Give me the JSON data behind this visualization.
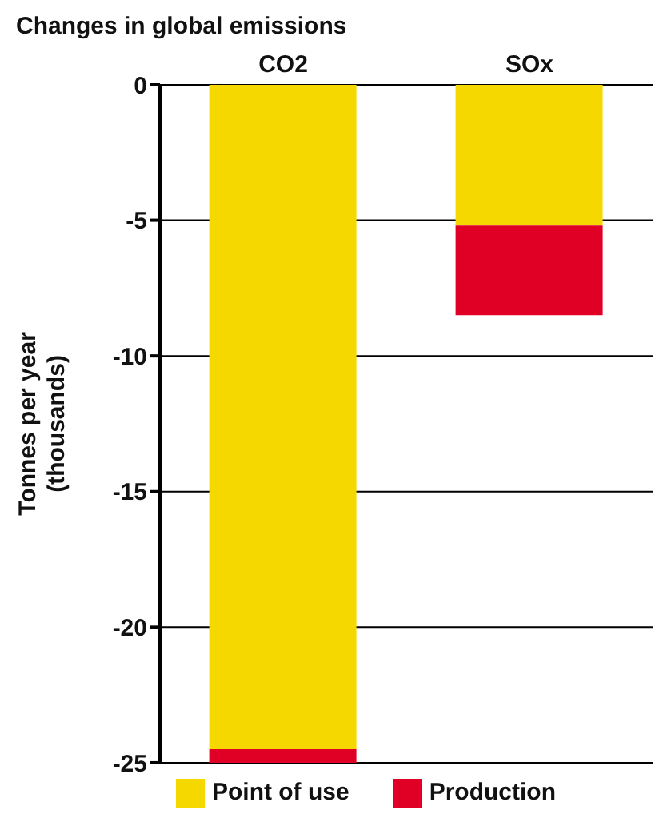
{
  "chart_data": {
    "type": "bar",
    "title": "Changes in global emissions",
    "ylabel": "Tonnes per year (thousands)",
    "categories": [
      "CO2",
      "SOx"
    ],
    "series": [
      {
        "name": "Point of use",
        "color": "#f5d800",
        "values": [
          -24.5,
          -5.2
        ]
      },
      {
        "name": "Production",
        "color": "#e00025",
        "values": [
          -0.5,
          -3.3
        ]
      }
    ],
    "stacked": true,
    "ylim": [
      -25,
      0
    ],
    "yticks": [
      -25,
      -20,
      -15,
      -10,
      -5,
      0
    ],
    "grid": "y",
    "legend": "bottom"
  }
}
